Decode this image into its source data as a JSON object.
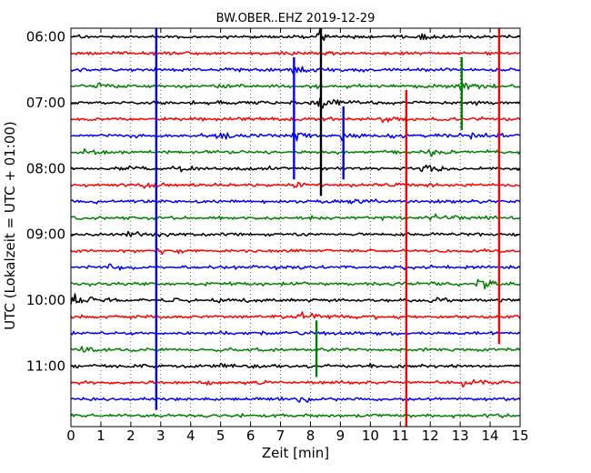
{
  "chart_data": {
    "type": "line",
    "title": "BW.OBER..EHZ 2019-12-29",
    "xlabel": "Zeit  [min]",
    "ylabel": "UTC (Lokalzeit = UTC + 01:00)",
    "xlim": [
      0,
      15
    ],
    "x_ticks": [
      0,
      1,
      2,
      3,
      4,
      5,
      6,
      7,
      8,
      9,
      10,
      11,
      12,
      13,
      14,
      15
    ],
    "x_tick_labels": [
      "0",
      "1",
      "2",
      "3",
      "4",
      "5",
      "6",
      "7",
      "8",
      "9",
      "10",
      "11",
      "12",
      "13",
      "14",
      "15"
    ],
    "y_tick_labels": [
      "06:00",
      "07:00",
      "08:00",
      "09:00",
      "10:00",
      "11:00"
    ],
    "grid": "x-dotted",
    "trace_interval_minutes": 15,
    "first_trace": "06:00",
    "trace_colors": [
      "#000000",
      "#ff0000",
      "#0000ff",
      "#008000"
    ],
    "traces": [
      {
        "start": "06:00",
        "color": "#000000"
      },
      {
        "start": "06:15",
        "color": "#ff0000"
      },
      {
        "start": "06:30",
        "color": "#0000ff"
      },
      {
        "start": "06:45",
        "color": "#008000"
      },
      {
        "start": "07:00",
        "color": "#000000"
      },
      {
        "start": "07:15",
        "color": "#ff0000"
      },
      {
        "start": "07:30",
        "color": "#0000ff"
      },
      {
        "start": "07:45",
        "color": "#008000"
      },
      {
        "start": "08:00",
        "color": "#000000"
      },
      {
        "start": "08:15",
        "color": "#ff0000"
      },
      {
        "start": "08:30",
        "color": "#0000ff"
      },
      {
        "start": "08:45",
        "color": "#008000"
      },
      {
        "start": "09:00",
        "color": "#000000"
      },
      {
        "start": "09:15",
        "color": "#ff0000"
      },
      {
        "start": "09:30",
        "color": "#0000ff"
      },
      {
        "start": "09:45",
        "color": "#008000"
      },
      {
        "start": "10:00",
        "color": "#000000"
      },
      {
        "start": "10:15",
        "color": "#ff0000"
      },
      {
        "start": "10:30",
        "color": "#0000ff"
      },
      {
        "start": "10:45",
        "color": "#008000"
      },
      {
        "start": "11:00",
        "color": "#000000"
      },
      {
        "start": "11:15",
        "color": "#ff0000"
      },
      {
        "start": "11:30",
        "color": "#0000ff"
      },
      {
        "start": "11:45",
        "color": "#008000"
      }
    ],
    "events": [
      {
        "trace": "06:00",
        "minute": 8.35,
        "strength": 1.0
      },
      {
        "trace": "06:00",
        "minute": 11.75,
        "strength": 0.6
      },
      {
        "trace": "06:30",
        "minute": 7.5,
        "strength": 0.8
      },
      {
        "trace": "06:45",
        "minute": 1.0,
        "strength": 0.5
      },
      {
        "trace": "06:45",
        "minute": 13.1,
        "strength": 0.7
      },
      {
        "trace": "07:00",
        "minute": 5.0,
        "strength": 0.3
      },
      {
        "trace": "07:00",
        "minute": 8.35,
        "strength": 0.9
      },
      {
        "trace": "07:15",
        "minute": 10.5,
        "strength": 0.5
      },
      {
        "trace": "07:30",
        "minute": 5.0,
        "strength": 0.5
      },
      {
        "trace": "07:30",
        "minute": 7.5,
        "strength": 0.6
      },
      {
        "trace": "07:30",
        "minute": 9.1,
        "strength": 0.8
      },
      {
        "trace": "07:30",
        "minute": 10.9,
        "strength": 0.6
      },
      {
        "trace": "07:30",
        "minute": 13.3,
        "strength": 0.5
      },
      {
        "trace": "07:45",
        "minute": 0.6,
        "strength": 0.5
      },
      {
        "trace": "07:45",
        "minute": 12.0,
        "strength": 0.6
      },
      {
        "trace": "08:00",
        "minute": 1.6,
        "strength": 0.6
      },
      {
        "trace": "08:00",
        "minute": 3.8,
        "strength": 0.5
      },
      {
        "trace": "08:00",
        "minute": 11.8,
        "strength": 0.6
      },
      {
        "trace": "08:15",
        "minute": 2.5,
        "strength": 0.5
      },
      {
        "trace": "08:15",
        "minute": 7.5,
        "strength": 0.5
      },
      {
        "trace": "08:15",
        "minute": 11.0,
        "strength": 0.5
      },
      {
        "trace": "08:30",
        "minute": 9.3,
        "strength": 0.6
      },
      {
        "trace": "08:45",
        "minute": 12.0,
        "strength": 1.0
      },
      {
        "trace": "09:00",
        "minute": 2.0,
        "strength": 0.5
      },
      {
        "trace": "09:15",
        "minute": 3.0,
        "strength": 0.4
      },
      {
        "trace": "09:30",
        "minute": 1.2,
        "strength": 0.5
      },
      {
        "trace": "09:45",
        "minute": 13.7,
        "strength": 1.4
      },
      {
        "trace": "10:00",
        "minute": 0.1,
        "strength": 0.9
      },
      {
        "trace": "10:00",
        "minute": 12.3,
        "strength": 0.6
      },
      {
        "trace": "10:15",
        "minute": 7.7,
        "strength": 0.6
      },
      {
        "trace": "10:30",
        "minute": 8.2,
        "strength": 0.5
      },
      {
        "trace": "10:45",
        "minute": 0.4,
        "strength": 0.6
      },
      {
        "trace": "11:00",
        "minute": 5.0,
        "strength": 0.6
      },
      {
        "trace": "11:15",
        "minute": 13.2,
        "strength": 0.5
      },
      {
        "trace": "11:30",
        "minute": 7.7,
        "strength": 0.4
      }
    ],
    "vertical_spikes": [
      {
        "minute": 2.85,
        "from": "06:00",
        "to": "11:30",
        "color": "#0000ff"
      },
      {
        "minute": 8.35,
        "from": "06:00",
        "to": "08:15",
        "color": "#000000"
      },
      {
        "minute": 7.45,
        "from": "06:30",
        "to": "08:00",
        "color": "#0000ff"
      },
      {
        "minute": 9.1,
        "from": "07:15",
        "to": "08:00",
        "color": "#0000ff"
      },
      {
        "minute": 11.2,
        "from": "07:00",
        "to": "11:45",
        "color": "#ff0000"
      },
      {
        "minute": 14.3,
        "from": "06:00",
        "to": "10:30",
        "color": "#ff0000"
      },
      {
        "minute": 13.05,
        "from": "06:30",
        "to": "07:15",
        "color": "#008000"
      },
      {
        "minute": 8.2,
        "from": "10:30",
        "to": "11:00",
        "color": "#008000"
      }
    ]
  }
}
